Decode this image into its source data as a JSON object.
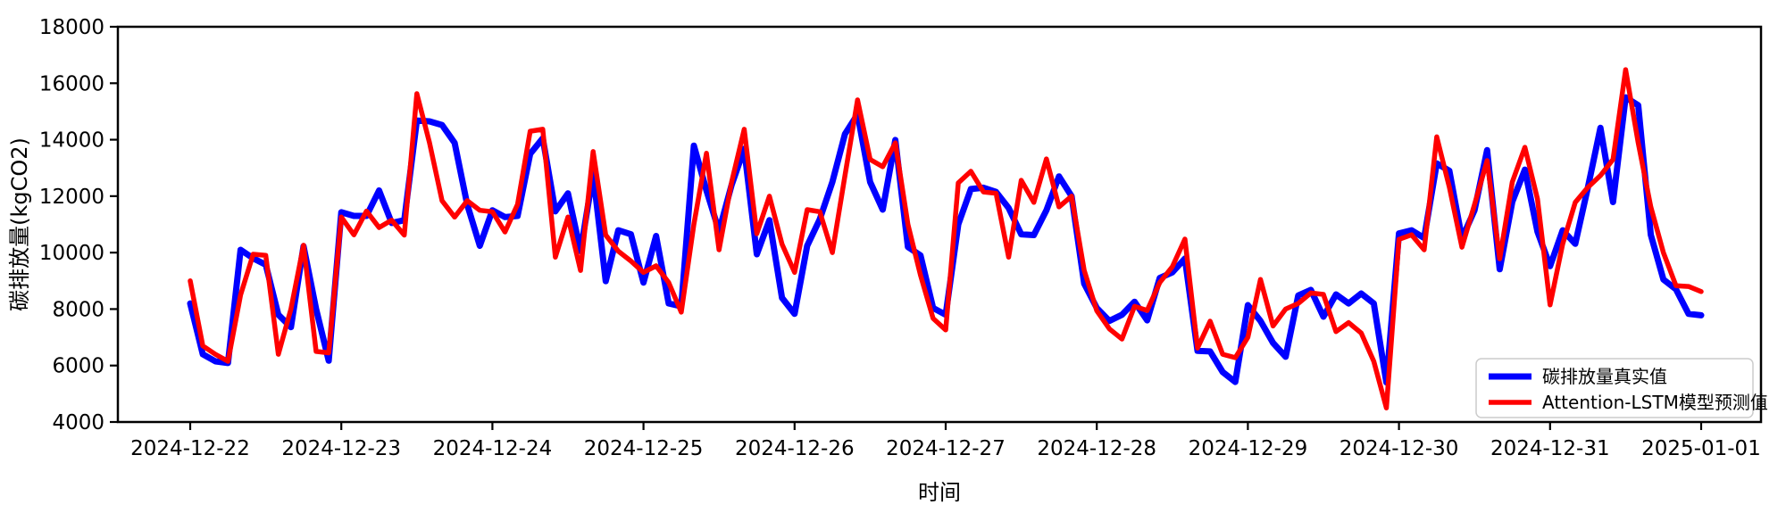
{
  "chart_data": {
    "type": "line",
    "title": "",
    "xlabel": "时间",
    "ylabel": "碳排放量(kgCO2)",
    "ylim": [
      4000,
      18000
    ],
    "yticks": [
      4000,
      6000,
      8000,
      10000,
      12000,
      14000,
      16000,
      18000
    ],
    "xtick_labels": [
      "2024-12-22",
      "2024-12-23",
      "2024-12-24",
      "2024-12-25",
      "2024-12-26",
      "2024-12-27",
      "2024-12-28",
      "2024-12-29",
      "2024-12-30",
      "2024-12-31",
      "2025-01-01"
    ],
    "x_interval_hours": 2,
    "grid": "off",
    "legend_position": "lower right",
    "frame_color": "#000000",
    "background_color": "#ffffff",
    "series": [
      {
        "name": "碳排放量真实值",
        "color": "#0000ff",
        "values": [
          8200,
          6400,
          6150,
          6090,
          10100,
          9800,
          9570,
          7800,
          7360,
          10230,
          8000,
          6170,
          11430,
          11300,
          11300,
          12200,
          11050,
          11150,
          14680,
          14650,
          14520,
          13890,
          11700,
          10240,
          11500,
          11260,
          11300,
          13500,
          14050,
          11460,
          12100,
          10050,
          12790,
          8990,
          10790,
          10650,
          8940,
          10590,
          8200,
          8100,
          13790,
          12200,
          10760,
          12400,
          13680,
          9940,
          11150,
          8400,
          7830,
          10240,
          11180,
          12500,
          14200,
          14900,
          12500,
          11520,
          13990,
          10200,
          9900,
          8040,
          7800,
          11000,
          12250,
          12300,
          12150,
          11580,
          10650,
          10620,
          11500,
          12700,
          12000,
          8900,
          8040,
          7580,
          7800,
          8260,
          7600,
          9100,
          9300,
          9790,
          6520,
          6500,
          5770,
          5420,
          8140,
          7580,
          6800,
          6310,
          8480,
          8680,
          7730,
          8520,
          8200,
          8550,
          8200,
          5400,
          10680,
          10790,
          10520,
          13160,
          12900,
          10500,
          11500,
          13630,
          9410,
          11800,
          12940,
          10740,
          9520,
          10790,
          10310,
          12300,
          14420,
          11790,
          15500,
          15220,
          10630,
          9050,
          8700,
          7830,
          7780
        ]
      },
      {
        "name": "Attention-LSTM模型预测值",
        "color": "#ff0000",
        "values": [
          9000,
          6700,
          6400,
          6150,
          8500,
          9940,
          9900,
          6400,
          8000,
          10260,
          6500,
          6450,
          11260,
          10630,
          11470,
          10890,
          11150,
          10620,
          15630,
          13900,
          11840,
          11260,
          11840,
          11500,
          11450,
          10730,
          11710,
          14300,
          14370,
          9840,
          11260,
          9370,
          13580,
          10620,
          10050,
          9700,
          9300,
          9530,
          8940,
          7890,
          11000,
          13520,
          10100,
          12500,
          14370,
          10670,
          12000,
          10300,
          9300,
          11520,
          11450,
          10000,
          12730,
          15410,
          13300,
          13040,
          13890,
          11000,
          9200,
          7670,
          7260,
          12470,
          12880,
          12150,
          12100,
          9840,
          12560,
          11780,
          13320,
          11620,
          12000,
          9370,
          7940,
          7300,
          6940,
          8100,
          7950,
          8940,
          9500,
          10480,
          6620,
          7570,
          6400,
          6280,
          7000,
          9050,
          7400,
          8000,
          8200,
          8570,
          8520,
          7200,
          7520,
          7150,
          6150,
          4500,
          10470,
          10630,
          10100,
          14100,
          12320,
          10190,
          11700,
          13260,
          9780,
          12500,
          13730,
          11900,
          8150,
          10300,
          11780,
          12310,
          12730,
          13300,
          16480,
          13890,
          11620,
          10000,
          8830,
          8800,
          8620
        ]
      }
    ]
  },
  "legend": {
    "actual_label": "碳排放量真实值",
    "predicted_label": "Attention-LSTM模型预测值"
  },
  "colors": {
    "actual": "#0000ff",
    "predicted": "#ff0000",
    "axis": "#000000",
    "legend_border": "#cccccc"
  }
}
